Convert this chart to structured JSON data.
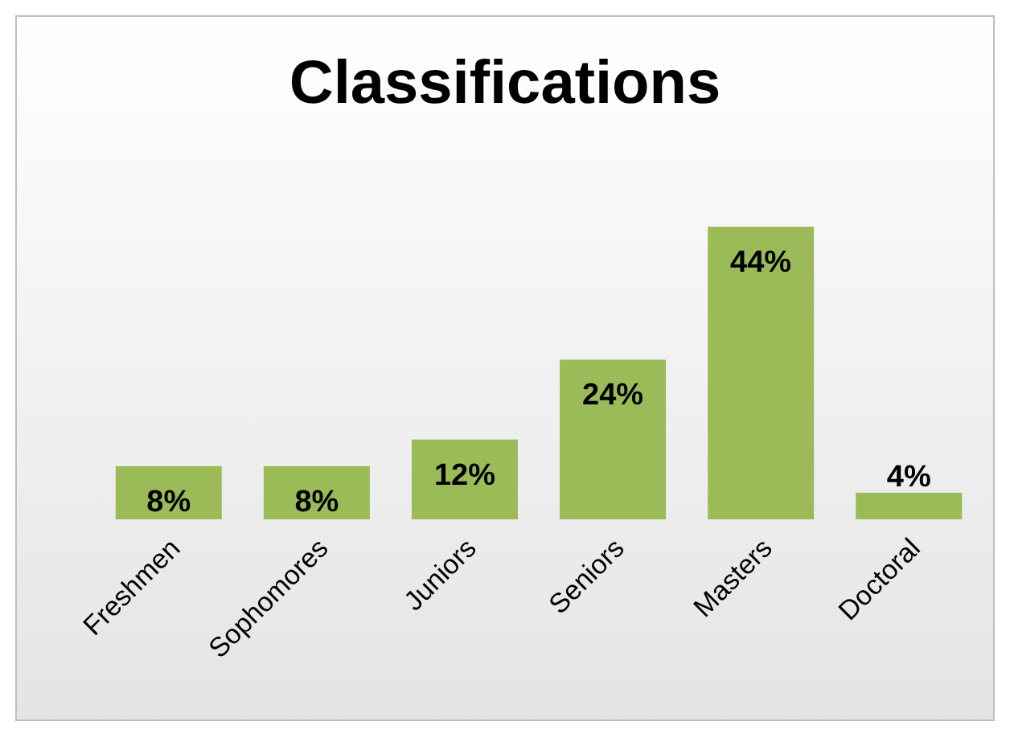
{
  "chart_data": {
    "type": "bar",
    "title": "Classifications",
    "categories": [
      "Freshmen",
      "Sophomores",
      "Juniors",
      "Seniors",
      "Masters",
      "Doctoral"
    ],
    "values": [
      8,
      8,
      12,
      24,
      44,
      4
    ],
    "value_labels": [
      "8%",
      "8%",
      "12%",
      "24%",
      "44%",
      "4%"
    ],
    "color": "#9bbb59"
  }
}
